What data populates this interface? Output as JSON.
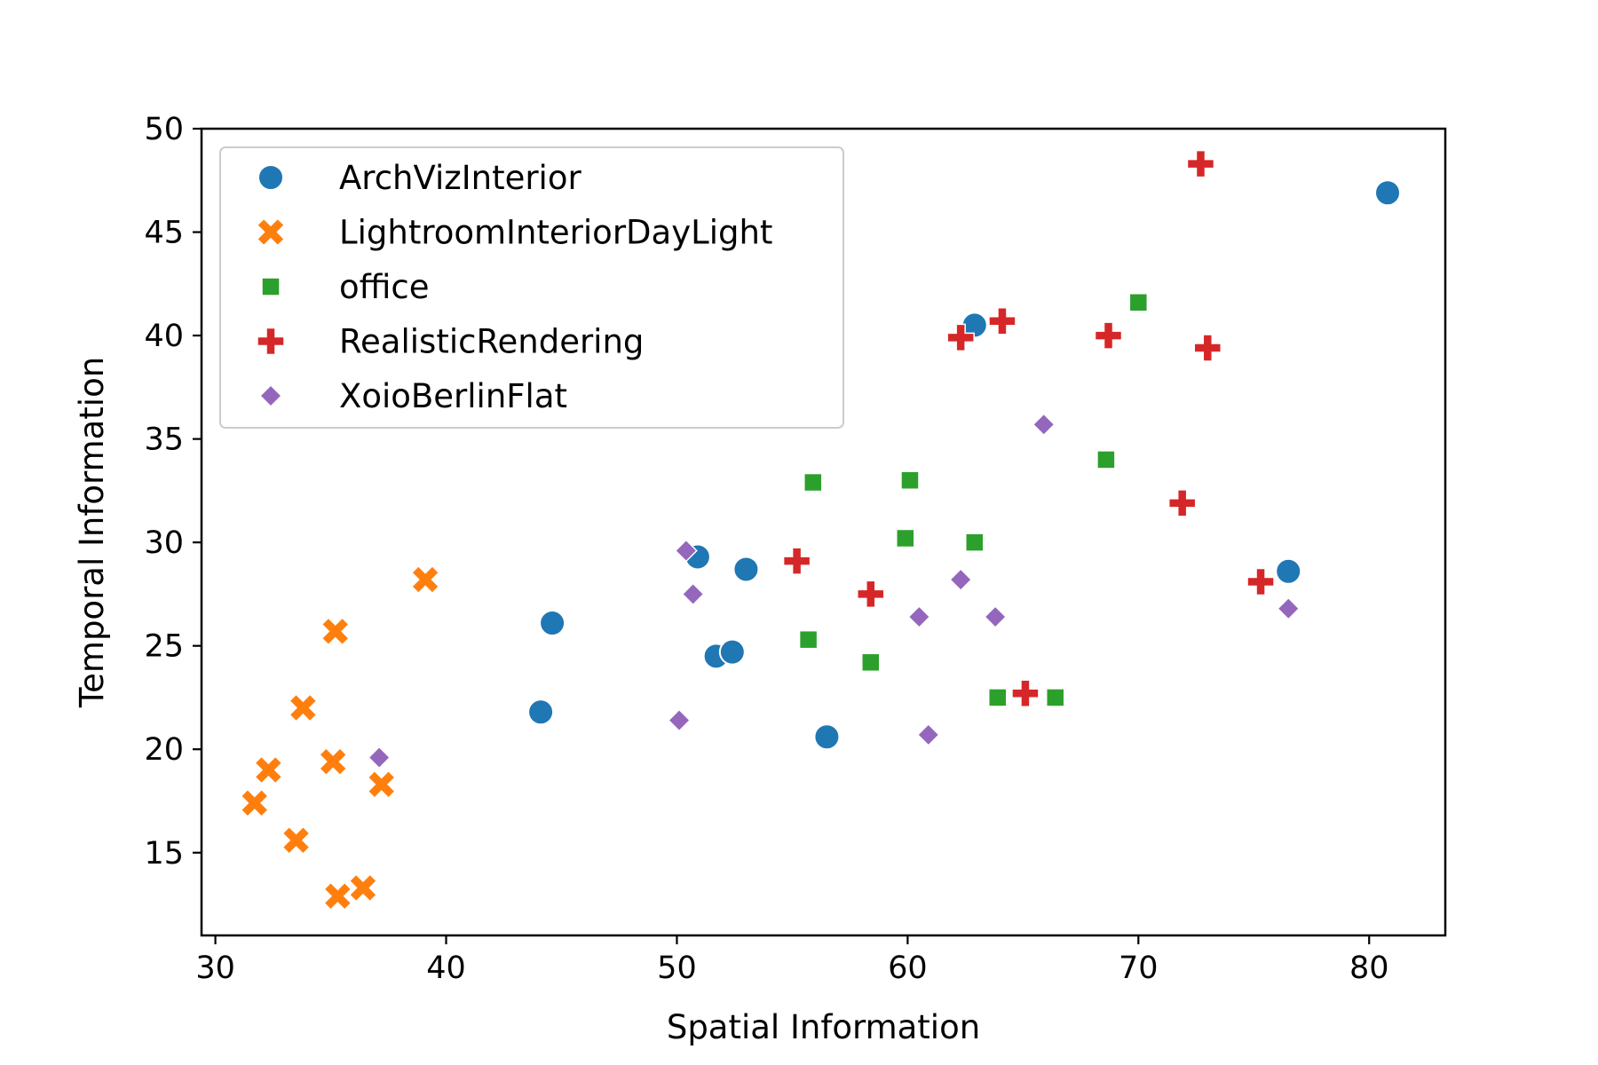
{
  "chart_data": {
    "type": "scatter",
    "title": "",
    "xlabel": "Spatial Information",
    "ylabel": "Temporal Information",
    "xlim": [
      29.4,
      83.3
    ],
    "ylim": [
      11.0,
      50.0
    ],
    "xticks": [
      30,
      40,
      50,
      60,
      70,
      80
    ],
    "yticks": [
      15,
      20,
      25,
      30,
      35,
      40,
      45,
      50
    ],
    "grid": false,
    "legend_position": "top-left",
    "series": [
      {
        "name": "ArchVizInterior",
        "marker": "circle",
        "color": "#1f77b4",
        "points": [
          {
            "x": 80.8,
            "y": 46.9
          },
          {
            "x": 62.9,
            "y": 40.5
          },
          {
            "x": 76.5,
            "y": 28.6
          },
          {
            "x": 50.9,
            "y": 29.3
          },
          {
            "x": 53.0,
            "y": 28.7
          },
          {
            "x": 44.6,
            "y": 26.1
          },
          {
            "x": 51.7,
            "y": 24.5
          },
          {
            "x": 52.4,
            "y": 24.7
          },
          {
            "x": 44.1,
            "y": 21.8
          },
          {
            "x": 56.5,
            "y": 20.6
          }
        ]
      },
      {
        "name": "LightroomInteriorDayLight",
        "marker": "x",
        "color": "#ff7f0e",
        "points": [
          {
            "x": 39.1,
            "y": 28.2
          },
          {
            "x": 35.2,
            "y": 25.7
          },
          {
            "x": 33.8,
            "y": 22.0
          },
          {
            "x": 35.1,
            "y": 19.4
          },
          {
            "x": 32.3,
            "y": 19.0
          },
          {
            "x": 37.2,
            "y": 18.3
          },
          {
            "x": 31.7,
            "y": 17.4
          },
          {
            "x": 33.5,
            "y": 15.6
          },
          {
            "x": 36.4,
            "y": 13.3
          },
          {
            "x": 35.3,
            "y": 12.9
          }
        ]
      },
      {
        "name": "office",
        "marker": "square",
        "color": "#2ca02c",
        "points": [
          {
            "x": 70.0,
            "y": 41.6
          },
          {
            "x": 68.6,
            "y": 34.0
          },
          {
            "x": 55.9,
            "y": 32.9
          },
          {
            "x": 60.1,
            "y": 33.0
          },
          {
            "x": 59.9,
            "y": 30.2
          },
          {
            "x": 62.9,
            "y": 30.0
          },
          {
            "x": 55.7,
            "y": 25.3
          },
          {
            "x": 58.4,
            "y": 24.2
          },
          {
            "x": 63.9,
            "y": 22.5
          },
          {
            "x": 66.4,
            "y": 22.5
          }
        ]
      },
      {
        "name": "RealisticRendering",
        "marker": "plus",
        "color": "#d62728",
        "points": [
          {
            "x": 72.7,
            "y": 48.3
          },
          {
            "x": 64.1,
            "y": 40.7
          },
          {
            "x": 62.3,
            "y": 39.9
          },
          {
            "x": 68.7,
            "y": 40.0
          },
          {
            "x": 73.0,
            "y": 39.4
          },
          {
            "x": 71.9,
            "y": 31.9
          },
          {
            "x": 55.2,
            "y": 29.1
          },
          {
            "x": 58.4,
            "y": 27.5
          },
          {
            "x": 75.3,
            "y": 28.1
          },
          {
            "x": 65.1,
            "y": 22.7
          }
        ]
      },
      {
        "name": "XoioBerlinFlat",
        "marker": "diamond",
        "color": "#9467bd",
        "points": [
          {
            "x": 65.9,
            "y": 35.7
          },
          {
            "x": 50.4,
            "y": 29.6
          },
          {
            "x": 50.7,
            "y": 27.5
          },
          {
            "x": 62.3,
            "y": 28.2
          },
          {
            "x": 60.5,
            "y": 26.4
          },
          {
            "x": 63.8,
            "y": 26.4
          },
          {
            "x": 76.5,
            "y": 26.8
          },
          {
            "x": 50.1,
            "y": 21.4
          },
          {
            "x": 60.9,
            "y": 20.7
          },
          {
            "x": 37.1,
            "y": 19.6
          }
        ]
      }
    ]
  }
}
